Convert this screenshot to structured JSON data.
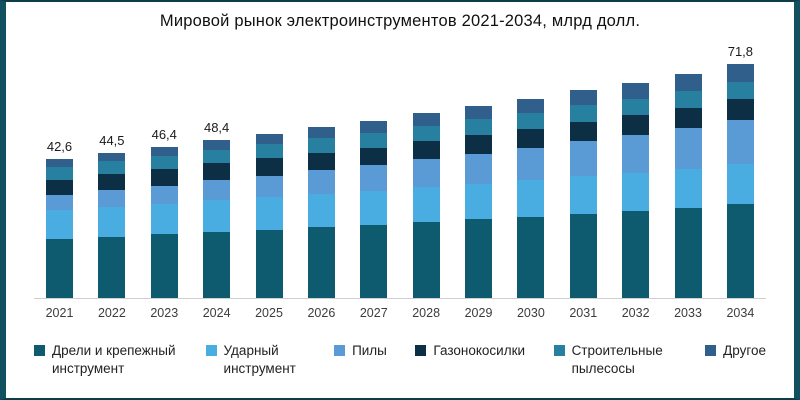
{
  "title": "Мировой рынок электроинструментов 2021-2034, млрд долл.",
  "chart_data": {
    "type": "bar",
    "stacked": true,
    "title": "Мировой рынок электроинструментов 2021-2034, млрд долл.",
    "xlabel": "",
    "ylabel": "млрд долл.",
    "ylim": [
      0,
      75
    ],
    "grid": false,
    "legend_position": "bottom",
    "categories": [
      "2021",
      "2022",
      "2023",
      "2024",
      "2025",
      "2026",
      "2027",
      "2028",
      "2029",
      "2030",
      "2031",
      "2032",
      "2033",
      "2034"
    ],
    "totals": [
      42.6,
      44.5,
      46.4,
      48.4,
      50.3,
      52.4,
      54.3,
      56.7,
      58.9,
      61.1,
      63.7,
      66.1,
      68.8,
      71.8
    ],
    "total_labels": [
      "42,6",
      "44,5",
      "46,4",
      "48,4",
      "",
      "",
      "",
      "",
      "",
      "",
      "",
      "",
      "",
      "71,8"
    ],
    "series": [
      {
        "name": "Дрели и крепежный инструмент",
        "color": "#0e5a6e",
        "values": [
          18.1,
          18.8,
          19.6,
          20.3,
          21.0,
          21.8,
          22.5,
          23.3,
          24.1,
          24.9,
          25.8,
          26.7,
          27.7,
          28.8
        ]
      },
      {
        "name": "Ударный инструмент",
        "color": "#49ade2",
        "values": [
          8.9,
          9.2,
          9.4,
          9.7,
          9.9,
          10.2,
          10.4,
          10.7,
          10.9,
          11.2,
          11.5,
          11.7,
          12.0,
          12.3
        ]
      },
      {
        "name": "Пилы",
        "color": "#5b9bd5",
        "values": [
          4.5,
          5.0,
          5.5,
          6.1,
          6.6,
          7.2,
          7.8,
          8.5,
          9.2,
          9.9,
          10.8,
          11.6,
          12.5,
          13.5
        ]
      },
      {
        "name": "Газонокосилки",
        "color": "#0c2f45",
        "values": [
          4.8,
          4.9,
          5.1,
          5.2,
          5.3,
          5.4,
          5.5,
          5.7,
          5.8,
          5.9,
          6.0,
          6.1,
          6.2,
          6.4
        ]
      },
      {
        "name": "Строительные пылесосы",
        "color": "#27809f",
        "values": [
          3.9,
          4.0,
          4.1,
          4.2,
          4.4,
          4.5,
          4.5,
          4.7,
          4.8,
          4.9,
          5.0,
          5.1,
          5.2,
          5.3
        ]
      },
      {
        "name": "Другое",
        "color": "#305f8c",
        "values": [
          2.4,
          2.6,
          2.7,
          2.9,
          3.1,
          3.3,
          3.6,
          3.8,
          4.1,
          4.3,
          4.6,
          4.9,
          5.2,
          5.5
        ]
      }
    ]
  }
}
